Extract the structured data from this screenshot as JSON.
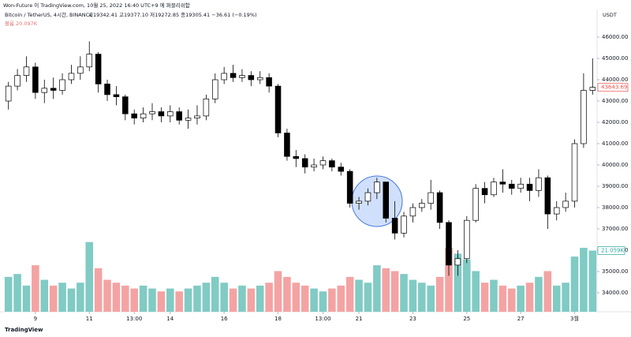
{
  "header": {
    "attribution": "Won-Future 이 TradingView.com, 10월 25, 2022 16:40 UTC+9 에 퍼블리쉬함",
    "currency": "USDT",
    "footer": "TradingView"
  },
  "chart_data": {
    "type": "candlestick",
    "title": "Bitcoin / TetherUS, 4시간, BINANCE",
    "ohlc_text": "시19342.41 고19377.10 저19272.85 종19305.41 −36.61 (−0.19%)",
    "volume_text": "볼륨 20.097K",
    "last_volume_label": "21.059K",
    "up_color": "#ffffff",
    "down_color": "#000000",
    "outline_color": "#000000",
    "volume_up_color": "#80cbc4",
    "volume_down_color": "#f4a3a3",
    "categories": [
      null,
      null,
      null,
      "9",
      null,
      null,
      null,
      null,
      null,
      "11",
      null,
      null,
      null,
      null,
      "13:00",
      null,
      null,
      null,
      "14",
      null,
      null,
      null,
      null,
      null,
      "16",
      null,
      null,
      null,
      null,
      null,
      "18",
      null,
      null,
      null,
      null,
      "13:00",
      null,
      null,
      null,
      "21",
      null,
      null,
      null,
      null,
      null,
      "23",
      null,
      null,
      null,
      null,
      null,
      "25",
      null,
      null,
      null,
      null,
      null,
      "27",
      null,
      null,
      null,
      null,
      null,
      "3월",
      null,
      null
    ],
    "open": [
      43000,
      43700,
      44200,
      44600,
      43400,
      43600,
      43500,
      44000,
      44300,
      44600,
      45200,
      43800,
      43300,
      43200,
      42400,
      42200,
      42400,
      42500,
      42300,
      42500,
      42100,
      42200,
      42300,
      43100,
      44000,
      44300,
      44100,
      44200,
      44000,
      44100,
      43700,
      41500,
      40400,
      40300,
      39900,
      40000,
      40200,
      39900,
      39700,
      38200,
      38300,
      38700,
      39200,
      37500,
      36800,
      37600,
      38000,
      38200,
      38700,
      37300,
      35300,
      35600,
      37400,
      38900,
      38600,
      39200,
      39100,
      38900,
      39100,
      38800,
      39400,
      37700,
      38000,
      38300,
      41000,
      43500
    ],
    "high": [
      43900,
      44500,
      45100,
      44800,
      44000,
      44100,
      44300,
      44700,
      45100,
      45800,
      45300,
      44000,
      43700,
      43300,
      42600,
      42700,
      42900,
      42700,
      42800,
      42700,
      42600,
      42800,
      43300,
      44300,
      44600,
      44700,
      44500,
      44400,
      44400,
      44300,
      43800,
      41700,
      40700,
      40500,
      40300,
      40400,
      40300,
      40100,
      39800,
      38500,
      38900,
      39400,
      39200,
      38300,
      37800,
      38200,
      38400,
      39300,
      38800,
      37400,
      36000,
      37600,
      39100,
      39200,
      39400,
      39800,
      39300,
      39400,
      39400,
      39800,
      39500,
      38300,
      38700,
      41200,
      44300,
      45000
    ],
    "low": [
      42600,
      43500,
      43900,
      43100,
      42900,
      43100,
      43300,
      43800,
      44000,
      44400,
      43400,
      43000,
      42800,
      42100,
      41900,
      42000,
      42100,
      42000,
      42000,
      41900,
      41700,
      41900,
      42100,
      42900,
      43800,
      43900,
      43900,
      43700,
      43800,
      43400,
      41300,
      40200,
      39900,
      39600,
      39700,
      39800,
      39700,
      39500,
      38000,
      37900,
      38100,
      38400,
      37300,
      36500,
      36600,
      37300,
      37800,
      37900,
      37000,
      34800,
      34800,
      35400,
      37300,
      38200,
      38500,
      38700,
      38600,
      38700,
      38300,
      38500,
      37000,
      37400,
      37800,
      38000,
      40800,
      43300
    ],
    "close": [
      43700,
      44200,
      44600,
      43400,
      43600,
      43500,
      44000,
      44300,
      44600,
      45200,
      43800,
      43300,
      43200,
      42400,
      42200,
      42400,
      42500,
      42300,
      42500,
      42100,
      42200,
      42300,
      43100,
      44000,
      44300,
      44100,
      44200,
      44000,
      44100,
      43700,
      41500,
      40400,
      40300,
      39900,
      40000,
      40200,
      39900,
      39700,
      38200,
      38300,
      38700,
      39200,
      37500,
      36800,
      37600,
      38000,
      38200,
      38700,
      37300,
      35300,
      35600,
      37400,
      38900,
      38600,
      39200,
      39100,
      38900,
      39100,
      38800,
      39400,
      37700,
      38000,
      38300,
      41000,
      43500,
      43643.69
    ],
    "volume": [
      12,
      13,
      9,
      16,
      11,
      9,
      10,
      8,
      10,
      24,
      15,
      11,
      10,
      9,
      8,
      9,
      8,
      7,
      8,
      7,
      8,
      9,
      10,
      12,
      10,
      8,
      9,
      8,
      9,
      10,
      14,
      12,
      10,
      9,
      8,
      7,
      8,
      9,
      12,
      11,
      10,
      16,
      15,
      14,
      13,
      11,
      10,
      9,
      12,
      22,
      20,
      18,
      14,
      10,
      11,
      9,
      8,
      9,
      10,
      12,
      14,
      9,
      10,
      19,
      22,
      21.059
    ],
    "ylim": [
      33110,
      46260
    ],
    "volume_ylim": [
      0,
      25
    ],
    "yticks": [
      {
        "value": 34000,
        "label": "34000.00"
      },
      {
        "value": 35000,
        "label": "35000.00"
      },
      {
        "value": 36000,
        "label": "36000.00"
      },
      {
        "value": 37000,
        "label": "37000.00"
      },
      {
        "value": 38000,
        "label": "38000.00"
      },
      {
        "value": 39000,
        "label": "39000.00"
      },
      {
        "value": 40000,
        "label": "40000.00"
      },
      {
        "value": 41000,
        "label": "41000.00"
      },
      {
        "value": 42000,
        "label": "42000.00"
      },
      {
        "value": 43000,
        "label": "43000.00"
      },
      {
        "value": 44000,
        "label": "44000.00"
      },
      {
        "value": 45000,
        "label": "45000.00"
      },
      {
        "value": 46000,
        "label": "46000.00"
      }
    ],
    "grid": false
  }
}
